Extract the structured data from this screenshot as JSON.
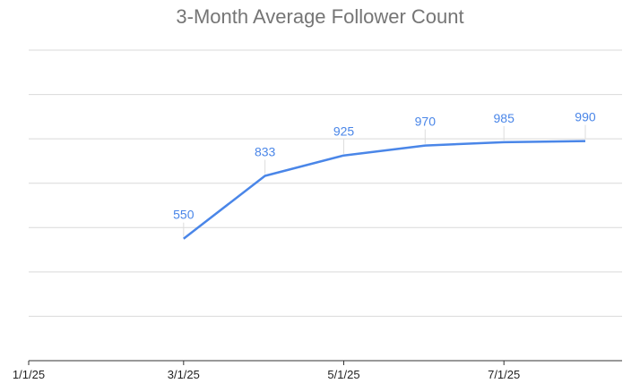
{
  "chart_data": {
    "type": "line",
    "title": "3-Month Average Follower Count",
    "xlabel": "",
    "ylabel": "",
    "x_ticks": [
      "1/1/25",
      "3/1/25",
      "5/1/25",
      "7/1/25"
    ],
    "x_range": [
      "1/1/25",
      "8/15/25"
    ],
    "ylim": [
      0,
      1400
    ],
    "grid": true,
    "legend": "none",
    "series": [
      {
        "color": "#4a86e8",
        "points": [
          {
            "x": "3/1/25",
            "y": 550,
            "label": "550"
          },
          {
            "x": "4/1/25",
            "y": 833,
            "label": "833"
          },
          {
            "x": "5/1/25",
            "y": 925,
            "label": "925"
          },
          {
            "x": "6/1/25",
            "y": 970,
            "label": "970"
          },
          {
            "x": "7/1/25",
            "y": 985,
            "label": "985"
          },
          {
            "x": "8/1/25",
            "y": 990,
            "label": "990"
          }
        ]
      }
    ]
  }
}
